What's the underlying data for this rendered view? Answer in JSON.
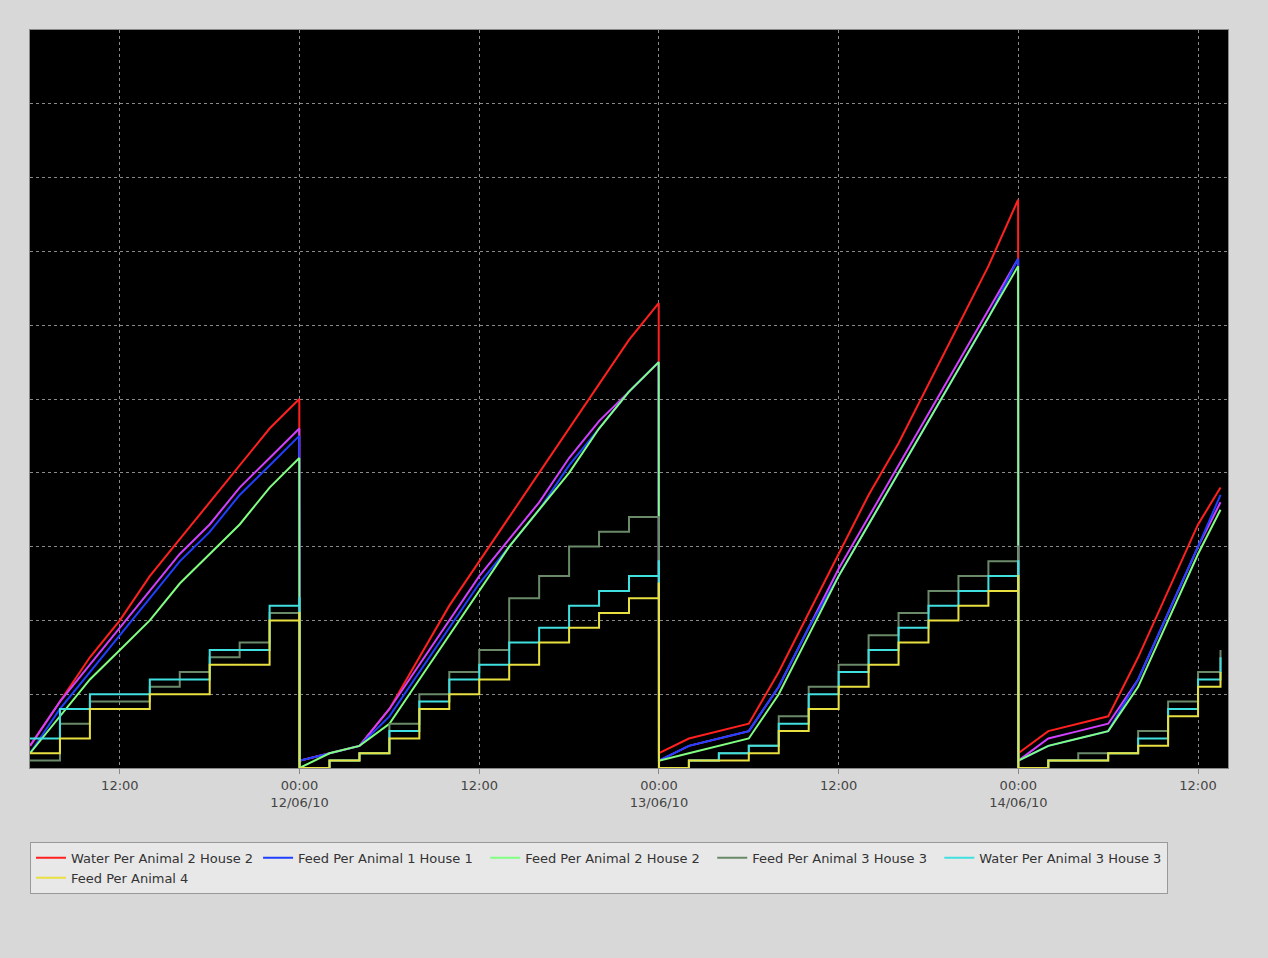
{
  "chart_data": {
    "type": "line",
    "x": [
      "2010-06-11 06:00",
      "2010-06-11 08:00",
      "2010-06-11 10:00",
      "2010-06-11 12:00",
      "2010-06-11 14:00",
      "2010-06-11 16:00",
      "2010-06-11 18:00",
      "2010-06-11 20:00",
      "2010-06-11 22:00",
      "2010-06-11 23:59",
      "2010-06-12 00:00",
      "2010-06-12 02:00",
      "2010-06-12 04:00",
      "2010-06-12 06:00",
      "2010-06-12 08:00",
      "2010-06-12 10:00",
      "2010-06-12 12:00",
      "2010-06-12 14:00",
      "2010-06-12 16:00",
      "2010-06-12 18:00",
      "2010-06-12 20:00",
      "2010-06-12 22:00",
      "2010-06-12 23:59",
      "2010-06-13 00:00",
      "2010-06-13 02:00",
      "2010-06-13 04:00",
      "2010-06-13 06:00",
      "2010-06-13 08:00",
      "2010-06-13 10:00",
      "2010-06-13 12:00",
      "2010-06-13 14:00",
      "2010-06-13 16:00",
      "2010-06-13 18:00",
      "2010-06-13 20:00",
      "2010-06-13 22:00",
      "2010-06-13 23:59",
      "2010-06-14 00:00",
      "2010-06-14 02:00",
      "2010-06-14 04:00",
      "2010-06-14 06:00",
      "2010-06-14 08:00",
      "2010-06-14 10:00",
      "2010-06-14 12:00",
      "2010-06-14 13:30"
    ],
    "series": [
      {
        "name": "Water Per Animal 2 House 2",
        "color": "#ff2020",
        "line_style": "solid",
        "values": [
          0.3,
          0.9,
          1.5,
          2.0,
          2.6,
          3.1,
          3.6,
          4.1,
          4.6,
          5.0,
          0.1,
          0.2,
          0.3,
          0.8,
          1.5,
          2.2,
          2.8,
          3.4,
          4.0,
          4.6,
          5.2,
          5.8,
          6.3,
          0.2,
          0.4,
          0.5,
          0.6,
          1.3,
          2.1,
          2.9,
          3.7,
          4.4,
          5.2,
          6.0,
          6.8,
          7.7,
          0.2,
          0.5,
          0.6,
          0.7,
          1.5,
          2.4,
          3.3,
          3.8
        ]
      },
      {
        "name": null,
        "color": "#d040ff",
        "line_style": "solid",
        "values": [
          0.3,
          0.9,
          1.4,
          1.9,
          2.4,
          2.9,
          3.3,
          3.8,
          4.2,
          4.6,
          0.1,
          0.2,
          0.3,
          0.8,
          1.4,
          2.0,
          2.6,
          3.1,
          3.6,
          4.2,
          4.7,
          5.1,
          5.5,
          0.1,
          0.3,
          0.4,
          0.5,
          1.1,
          1.9,
          2.7,
          3.4,
          4.1,
          4.8,
          5.5,
          6.2,
          6.9,
          0.1,
          0.4,
          0.5,
          0.6,
          1.2,
          2.1,
          3.0,
          3.6
        ]
      },
      {
        "name": "Feed Per Animal 1 House 1",
        "color": "#2040ff",
        "line_style": "solid",
        "values": [
          0.2,
          0.8,
          1.3,
          1.8,
          2.3,
          2.8,
          3.2,
          3.7,
          4.1,
          4.5,
          0.1,
          0.2,
          0.3,
          0.7,
          1.3,
          1.9,
          2.5,
          3.0,
          3.5,
          4.1,
          4.6,
          5.1,
          5.5,
          0.1,
          0.3,
          0.4,
          0.5,
          1.1,
          1.9,
          2.6,
          3.3,
          4.0,
          4.7,
          5.4,
          6.1,
          6.9,
          0.1,
          0.3,
          0.4,
          0.5,
          1.2,
          2.1,
          3.0,
          3.7
        ]
      },
      {
        "name": "Feed Per Animal 2 House 2",
        "color": "#80ff80",
        "line_style": "solid",
        "values": [
          0.2,
          0.7,
          1.2,
          1.6,
          2.0,
          2.5,
          2.9,
          3.3,
          3.8,
          4.2,
          0.0,
          0.2,
          0.3,
          0.6,
          1.2,
          1.8,
          2.4,
          3.0,
          3.5,
          4.0,
          4.6,
          5.1,
          5.5,
          0.1,
          0.2,
          0.3,
          0.4,
          1.0,
          1.8,
          2.6,
          3.3,
          4.0,
          4.7,
          5.4,
          6.1,
          6.8,
          0.1,
          0.3,
          0.4,
          0.5,
          1.1,
          2.0,
          2.9,
          3.5
        ]
      },
      {
        "name": "Feed Per Animal 3 House 3",
        "color": "#6a8a6a",
        "line_style": "step",
        "values": [
          0.1,
          0.6,
          0.9,
          0.9,
          1.1,
          1.3,
          1.5,
          1.7,
          2.1,
          2.3,
          0.0,
          0.1,
          0.2,
          0.6,
          1.0,
          1.3,
          1.6,
          2.3,
          2.6,
          3.0,
          3.2,
          3.4,
          3.4,
          0.0,
          0.1,
          0.2,
          0.3,
          0.7,
          1.1,
          1.4,
          1.8,
          2.1,
          2.4,
          2.6,
          2.8,
          3.0,
          0.0,
          0.1,
          0.2,
          0.2,
          0.5,
          0.9,
          1.3,
          1.6
        ]
      },
      {
        "name": "Water Per Animal 3 House 3",
        "color": "#40e0e0",
        "line_style": "step",
        "values": [
          0.4,
          0.8,
          1.0,
          1.0,
          1.2,
          1.2,
          1.6,
          1.6,
          2.2,
          2.3,
          0.0,
          0.1,
          0.2,
          0.5,
          0.9,
          1.2,
          1.4,
          1.7,
          1.9,
          2.2,
          2.4,
          2.6,
          2.8,
          0.0,
          0.1,
          0.2,
          0.3,
          0.6,
          1.0,
          1.3,
          1.6,
          1.9,
          2.2,
          2.4,
          2.6,
          2.8,
          0.0,
          0.1,
          0.1,
          0.2,
          0.4,
          0.8,
          1.2,
          1.5
        ]
      },
      {
        "name": "Feed Per Animal 4",
        "color": "#e8e040",
        "line_style": "step",
        "values": [
          0.2,
          0.4,
          0.8,
          0.8,
          1.0,
          1.0,
          1.4,
          1.4,
          2.0,
          2.1,
          0.0,
          0.1,
          0.2,
          0.4,
          0.8,
          1.0,
          1.2,
          1.4,
          1.7,
          1.9,
          2.1,
          2.3,
          2.5,
          0.0,
          0.1,
          0.1,
          0.2,
          0.5,
          0.8,
          1.1,
          1.4,
          1.7,
          2.0,
          2.2,
          2.4,
          2.6,
          0.0,
          0.1,
          0.1,
          0.2,
          0.3,
          0.7,
          1.1,
          1.3
        ]
      }
    ],
    "xlim": [
      "2010-06-11 06:00",
      "2010-06-14 14:00"
    ],
    "xticks": [
      {
        "value": "2010-06-11 12:00",
        "label": "12:00"
      },
      {
        "value": "2010-06-12 00:00",
        "label": "00:00\n12/06/10"
      },
      {
        "value": "2010-06-12 12:00",
        "label": "12:00"
      },
      {
        "value": "2010-06-13 00:00",
        "label": "00:00\n13/06/10"
      },
      {
        "value": "2010-06-13 12:00",
        "label": "12:00"
      },
      {
        "value": "2010-06-14 00:00",
        "label": "00:00\n14/06/10"
      },
      {
        "value": "2010-06-14 12:00",
        "label": "12:00"
      }
    ],
    "ylim": [
      0,
      10
    ],
    "yticks": [
      0,
      1,
      2,
      3,
      4,
      5,
      6,
      7,
      8,
      9,
      10
    ],
    "tick_labels": "x",
    "grid": true,
    "legend": "bottom"
  }
}
